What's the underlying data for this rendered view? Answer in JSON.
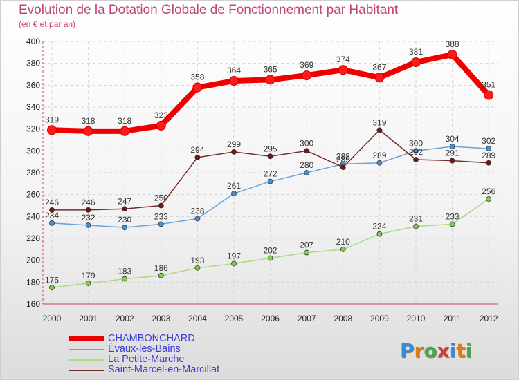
{
  "title": "Evolution de la Dotation Globale de Fonctionnement par Habitant",
  "subtitle": "(en € et par an)",
  "logo": {
    "text": "Proxiti",
    "colors": [
      "#3a8ad8",
      "#e07a1f",
      "#4aa84a",
      "#d63a3a",
      "#3a8ad8",
      "#e07a1f",
      "#4aa84a"
    ]
  },
  "chart_data": {
    "type": "line",
    "title": "Evolution de la Dotation Globale de Fonctionnement par Habitant",
    "subtitle": "(en € et par an)",
    "xlabel": "",
    "ylabel": "",
    "ylim": [
      160,
      400
    ],
    "yticks": [
      160,
      180,
      200,
      220,
      240,
      260,
      280,
      300,
      320,
      340,
      360,
      380,
      400
    ],
    "x": [
      "2000",
      "2001",
      "2002",
      "2003",
      "2004",
      "2005",
      "2006",
      "2007",
      "2008",
      "2009",
      "2010",
      "2011",
      "2012"
    ],
    "grid": true,
    "legend_position": "bottom-left",
    "series": [
      {
        "name": "CHAMBONCHARD",
        "color": "#ee0000",
        "marker_fill": "#ff1a1a",
        "emphasis": true,
        "values": [
          319,
          318,
          318,
          323,
          358,
          364,
          365,
          369,
          374,
          367,
          381,
          388,
          351
        ]
      },
      {
        "name": "Évaux-les-Bains",
        "color": "#6aa3d8",
        "marker_fill": "#4a8fd0",
        "emphasis": false,
        "values": [
          234,
          232,
          230,
          233,
          238,
          261,
          272,
          280,
          288,
          289,
          300,
          304,
          302
        ]
      },
      {
        "name": "La Petite-Marche",
        "color": "#a8dc80",
        "marker_fill": "#84cc4a",
        "emphasis": false,
        "values": [
          175,
          179,
          183,
          186,
          193,
          197,
          202,
          207,
          210,
          224,
          231,
          233,
          256
        ]
      },
      {
        "name": "Saint-Marcel-en-Marcillat",
        "color": "#7a2a2a",
        "marker_fill": "#6a1a1a",
        "emphasis": false,
        "values": [
          246,
          246,
          247,
          250,
          294,
          299,
          295,
          300,
          285,
          319,
          292,
          291,
          289
        ]
      }
    ]
  }
}
